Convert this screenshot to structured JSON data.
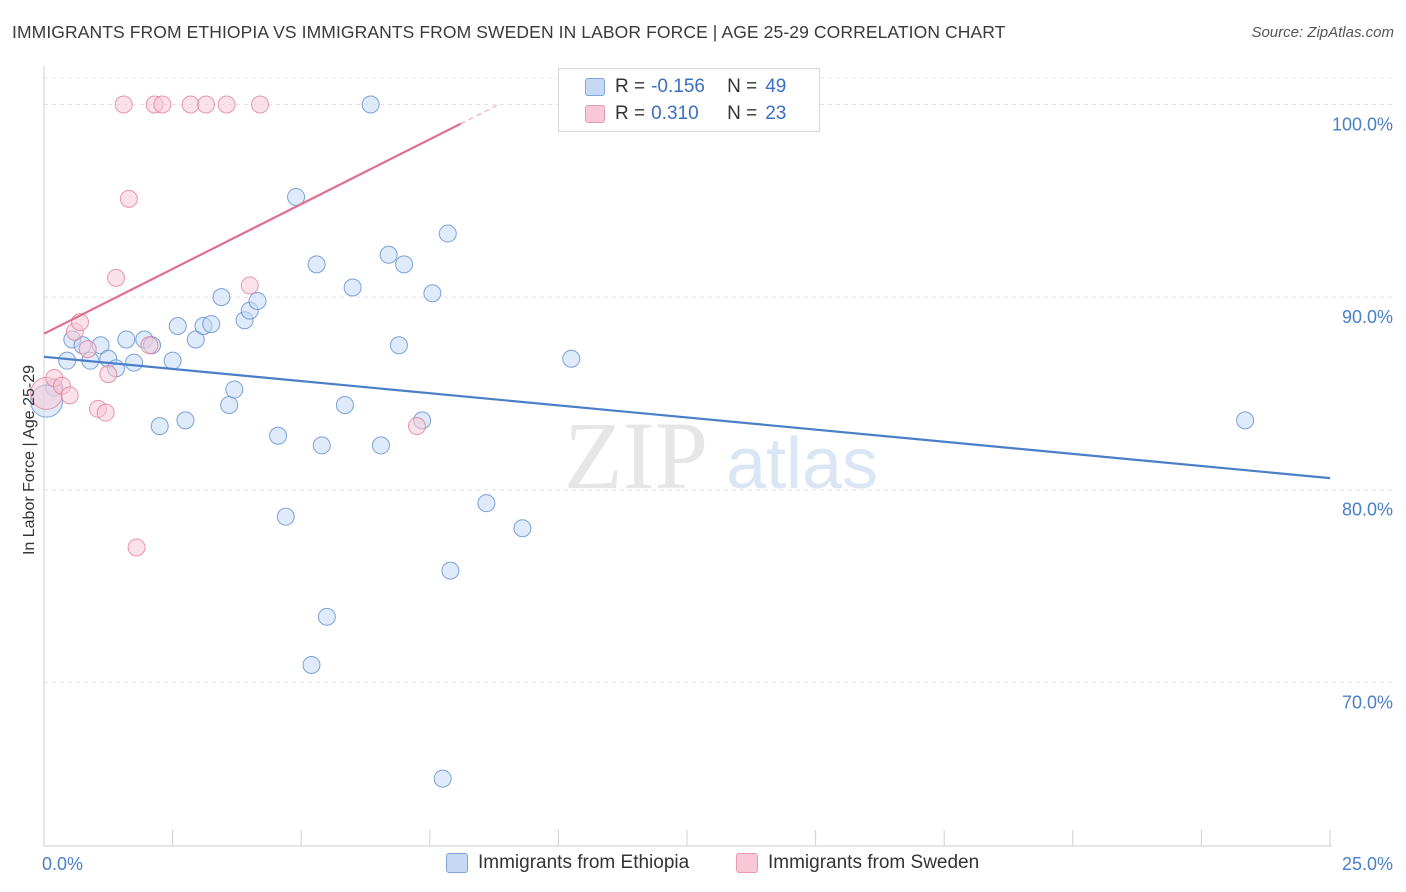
{
  "title": "IMMIGRANTS FROM ETHIOPIA VS IMMIGRANTS FROM SWEDEN IN LABOR FORCE | AGE 25-29 CORRELATION CHART",
  "source": "Source: ZipAtlas.com",
  "watermark": {
    "zip": "ZIP",
    "atlas": "atlas"
  },
  "legend": {
    "r_label": "R =",
    "n_label": "N =",
    "rows": [
      {
        "r": "-0.156",
        "n": "49",
        "fill": "#c5d9f5",
        "stroke": "#7fa6dc"
      },
      {
        "r": "0.310",
        "n": "23",
        "fill": "#f8c8d6",
        "stroke": "#e99ab3"
      }
    ]
  },
  "chart_data": {
    "type": "scatter",
    "xlabel": "",
    "ylabel": "In Labor Force | Age 25-29",
    "xlim": [
      0,
      25
    ],
    "ylim": [
      61.5,
      102
    ],
    "x_tick_labels": [
      {
        "value": 0,
        "label": "0.0%"
      },
      {
        "value": 25,
        "label": "25.0%"
      }
    ],
    "y_tick_labels": [
      {
        "value": 100,
        "label": "100.0%"
      },
      {
        "value": 90,
        "label": "90.0%"
      },
      {
        "value": 80,
        "label": "80.0%"
      },
      {
        "value": 70,
        "label": "70.0%"
      }
    ],
    "grid": true,
    "legend_position": "top-center",
    "series": [
      {
        "name": "Immigrants from Ethiopia",
        "color": "#4a7fc8",
        "fill": "#c5d9f5",
        "points": [
          [
            0.2,
            85.3
          ],
          [
            0.45,
            86.7
          ],
          [
            0.55,
            87.8
          ],
          [
            0.75,
            87.5
          ],
          [
            0.9,
            86.7
          ],
          [
            1.1,
            87.5
          ],
          [
            1.25,
            86.8
          ],
          [
            1.4,
            86.3
          ],
          [
            1.6,
            87.8
          ],
          [
            1.75,
            86.6
          ],
          [
            1.95,
            87.8
          ],
          [
            2.1,
            87.5
          ],
          [
            2.25,
            83.3
          ],
          [
            2.5,
            86.7
          ],
          [
            2.6,
            88.5
          ],
          [
            2.75,
            83.6
          ],
          [
            2.95,
            87.8
          ],
          [
            3.1,
            88.5
          ],
          [
            3.25,
            88.6
          ],
          [
            3.45,
            90.0
          ],
          [
            3.6,
            84.4
          ],
          [
            3.7,
            85.2
          ],
          [
            3.9,
            88.8
          ],
          [
            4.0,
            89.3
          ],
          [
            4.15,
            89.8
          ],
          [
            4.55,
            82.8
          ],
          [
            4.7,
            78.6
          ],
          [
            4.9,
            95.2
          ],
          [
            5.3,
            91.7
          ],
          [
            5.4,
            82.3
          ],
          [
            5.5,
            73.4
          ],
          [
            5.85,
            84.4
          ],
          [
            6.0,
            90.5
          ],
          [
            6.35,
            100.0
          ],
          [
            6.55,
            82.3
          ],
          [
            6.7,
            92.2
          ],
          [
            6.9,
            87.5
          ],
          [
            7.0,
            91.7
          ],
          [
            7.35,
            83.6
          ],
          [
            7.55,
            90.2
          ],
          [
            7.75,
            65.0
          ],
          [
            7.85,
            93.3
          ],
          [
            7.9,
            75.8
          ],
          [
            8.6,
            79.3
          ],
          [
            9.3,
            78.0
          ],
          [
            10.25,
            86.8
          ],
          [
            23.35,
            83.6
          ],
          [
            0.05,
            84.6
          ],
          [
            5.2,
            70.9
          ]
        ]
      },
      {
        "name": "Immigrants from Sweden",
        "color": "#e0708f",
        "fill": "#f8c8d6",
        "points": [
          [
            0.05,
            85.0
          ],
          [
            0.2,
            85.8
          ],
          [
            0.35,
            85.4
          ],
          [
            0.5,
            84.9
          ],
          [
            0.6,
            88.2
          ],
          [
            0.7,
            88.7
          ],
          [
            0.85,
            87.3
          ],
          [
            1.05,
            84.2
          ],
          [
            1.2,
            84.0
          ],
          [
            1.25,
            86.0
          ],
          [
            1.4,
            91.0
          ],
          [
            1.55,
            100.0
          ],
          [
            1.65,
            95.1
          ],
          [
            1.8,
            77.0
          ],
          [
            2.05,
            87.5
          ],
          [
            2.15,
            100.0
          ],
          [
            2.3,
            100.0
          ],
          [
            2.85,
            100.0
          ],
          [
            3.15,
            100.0
          ],
          [
            3.55,
            100.0
          ],
          [
            4.0,
            90.6
          ],
          [
            4.2,
            100.0
          ],
          [
            7.25,
            83.3
          ]
        ]
      }
    ],
    "trendlines": [
      {
        "series": "Immigrants from Ethiopia",
        "x": [
          0,
          25
        ],
        "y": [
          86.9,
          80.6
        ]
      },
      {
        "series": "Immigrants from Sweden",
        "x": [
          0,
          8.1
        ],
        "y": [
          88.1,
          99.0
        ]
      }
    ]
  }
}
